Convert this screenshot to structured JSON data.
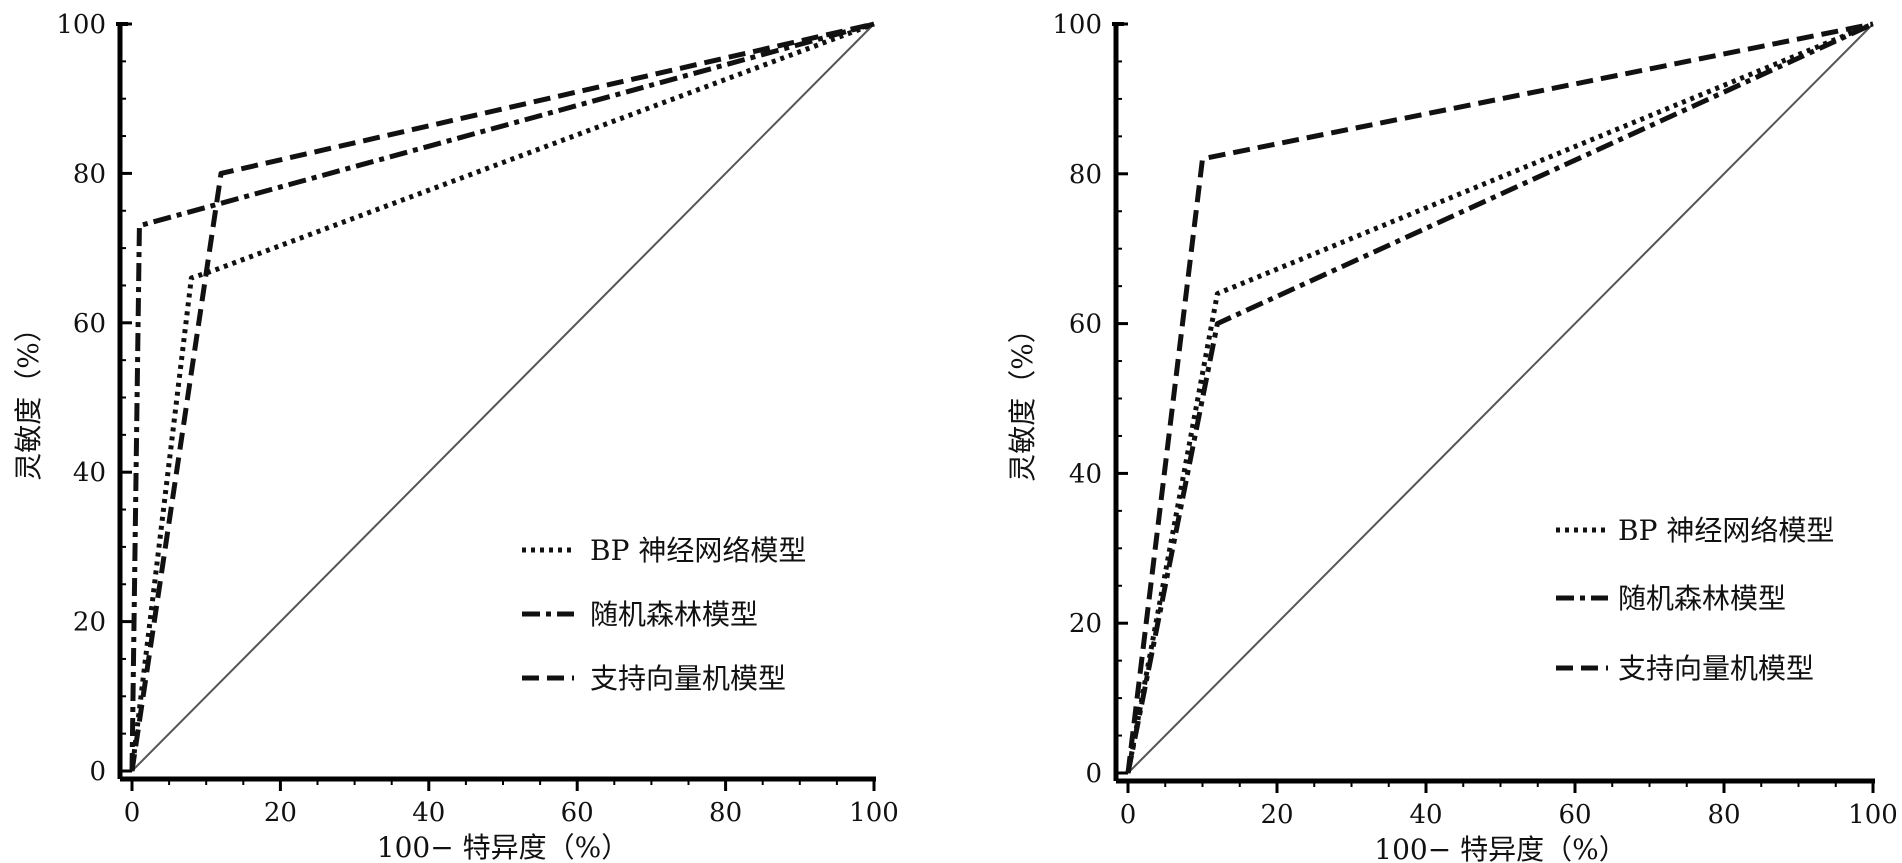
{
  "chart_data": [
    {
      "type": "line",
      "xlabel": "100− 特异度（%）",
      "ylabel": "灵敏度（%）",
      "xlim": [
        0,
        100
      ],
      "ylim": [
        0,
        100
      ],
      "xticks": [
        "0",
        "20",
        "40",
        "60",
        "80",
        "100"
      ],
      "yticks": [
        "0",
        "20",
        "40",
        "60",
        "80",
        "100"
      ],
      "grid": false,
      "legend_position": "bottom-right",
      "reference_line": {
        "x": [
          0,
          100
        ],
        "y": [
          0,
          100
        ]
      },
      "series": [
        {
          "name": "BP 神经网络模型",
          "style": "dotted",
          "x": [
            0,
            8,
            11,
            100
          ],
          "y": [
            0,
            66,
            67,
            100
          ]
        },
        {
          "name": "随机森林模型",
          "style": "dashdot",
          "x": [
            0,
            1,
            100
          ],
          "y": [
            0,
            73,
            100
          ]
        },
        {
          "name": "支持向量机模型",
          "style": "dashed",
          "x": [
            0,
            12,
            100
          ],
          "y": [
            0,
            80,
            100
          ]
        }
      ]
    },
    {
      "type": "line",
      "xlabel": "100− 特异度（%）",
      "ylabel": "灵敏度（%）",
      "xlim": [
        0,
        100
      ],
      "ylim": [
        0,
        100
      ],
      "xticks": [
        "0",
        "20",
        "40",
        "60",
        "80",
        "100"
      ],
      "yticks": [
        "0",
        "20",
        "40",
        "60",
        "80",
        "100"
      ],
      "grid": false,
      "legend_position": "bottom-right",
      "reference_line": {
        "x": [
          0,
          100
        ],
        "y": [
          0,
          100
        ]
      },
      "series": [
        {
          "name": "BP 神经网络模型",
          "style": "dotted",
          "x": [
            0,
            12,
            100
          ],
          "y": [
            0,
            64,
            100
          ]
        },
        {
          "name": "随机森林模型",
          "style": "dashdot",
          "x": [
            0,
            12,
            100
          ],
          "y": [
            0,
            60,
            100
          ]
        },
        {
          "name": "支持向量机模型",
          "style": "dashed",
          "x": [
            0,
            10,
            100
          ],
          "y": [
            0,
            82,
            100
          ]
        }
      ]
    }
  ]
}
